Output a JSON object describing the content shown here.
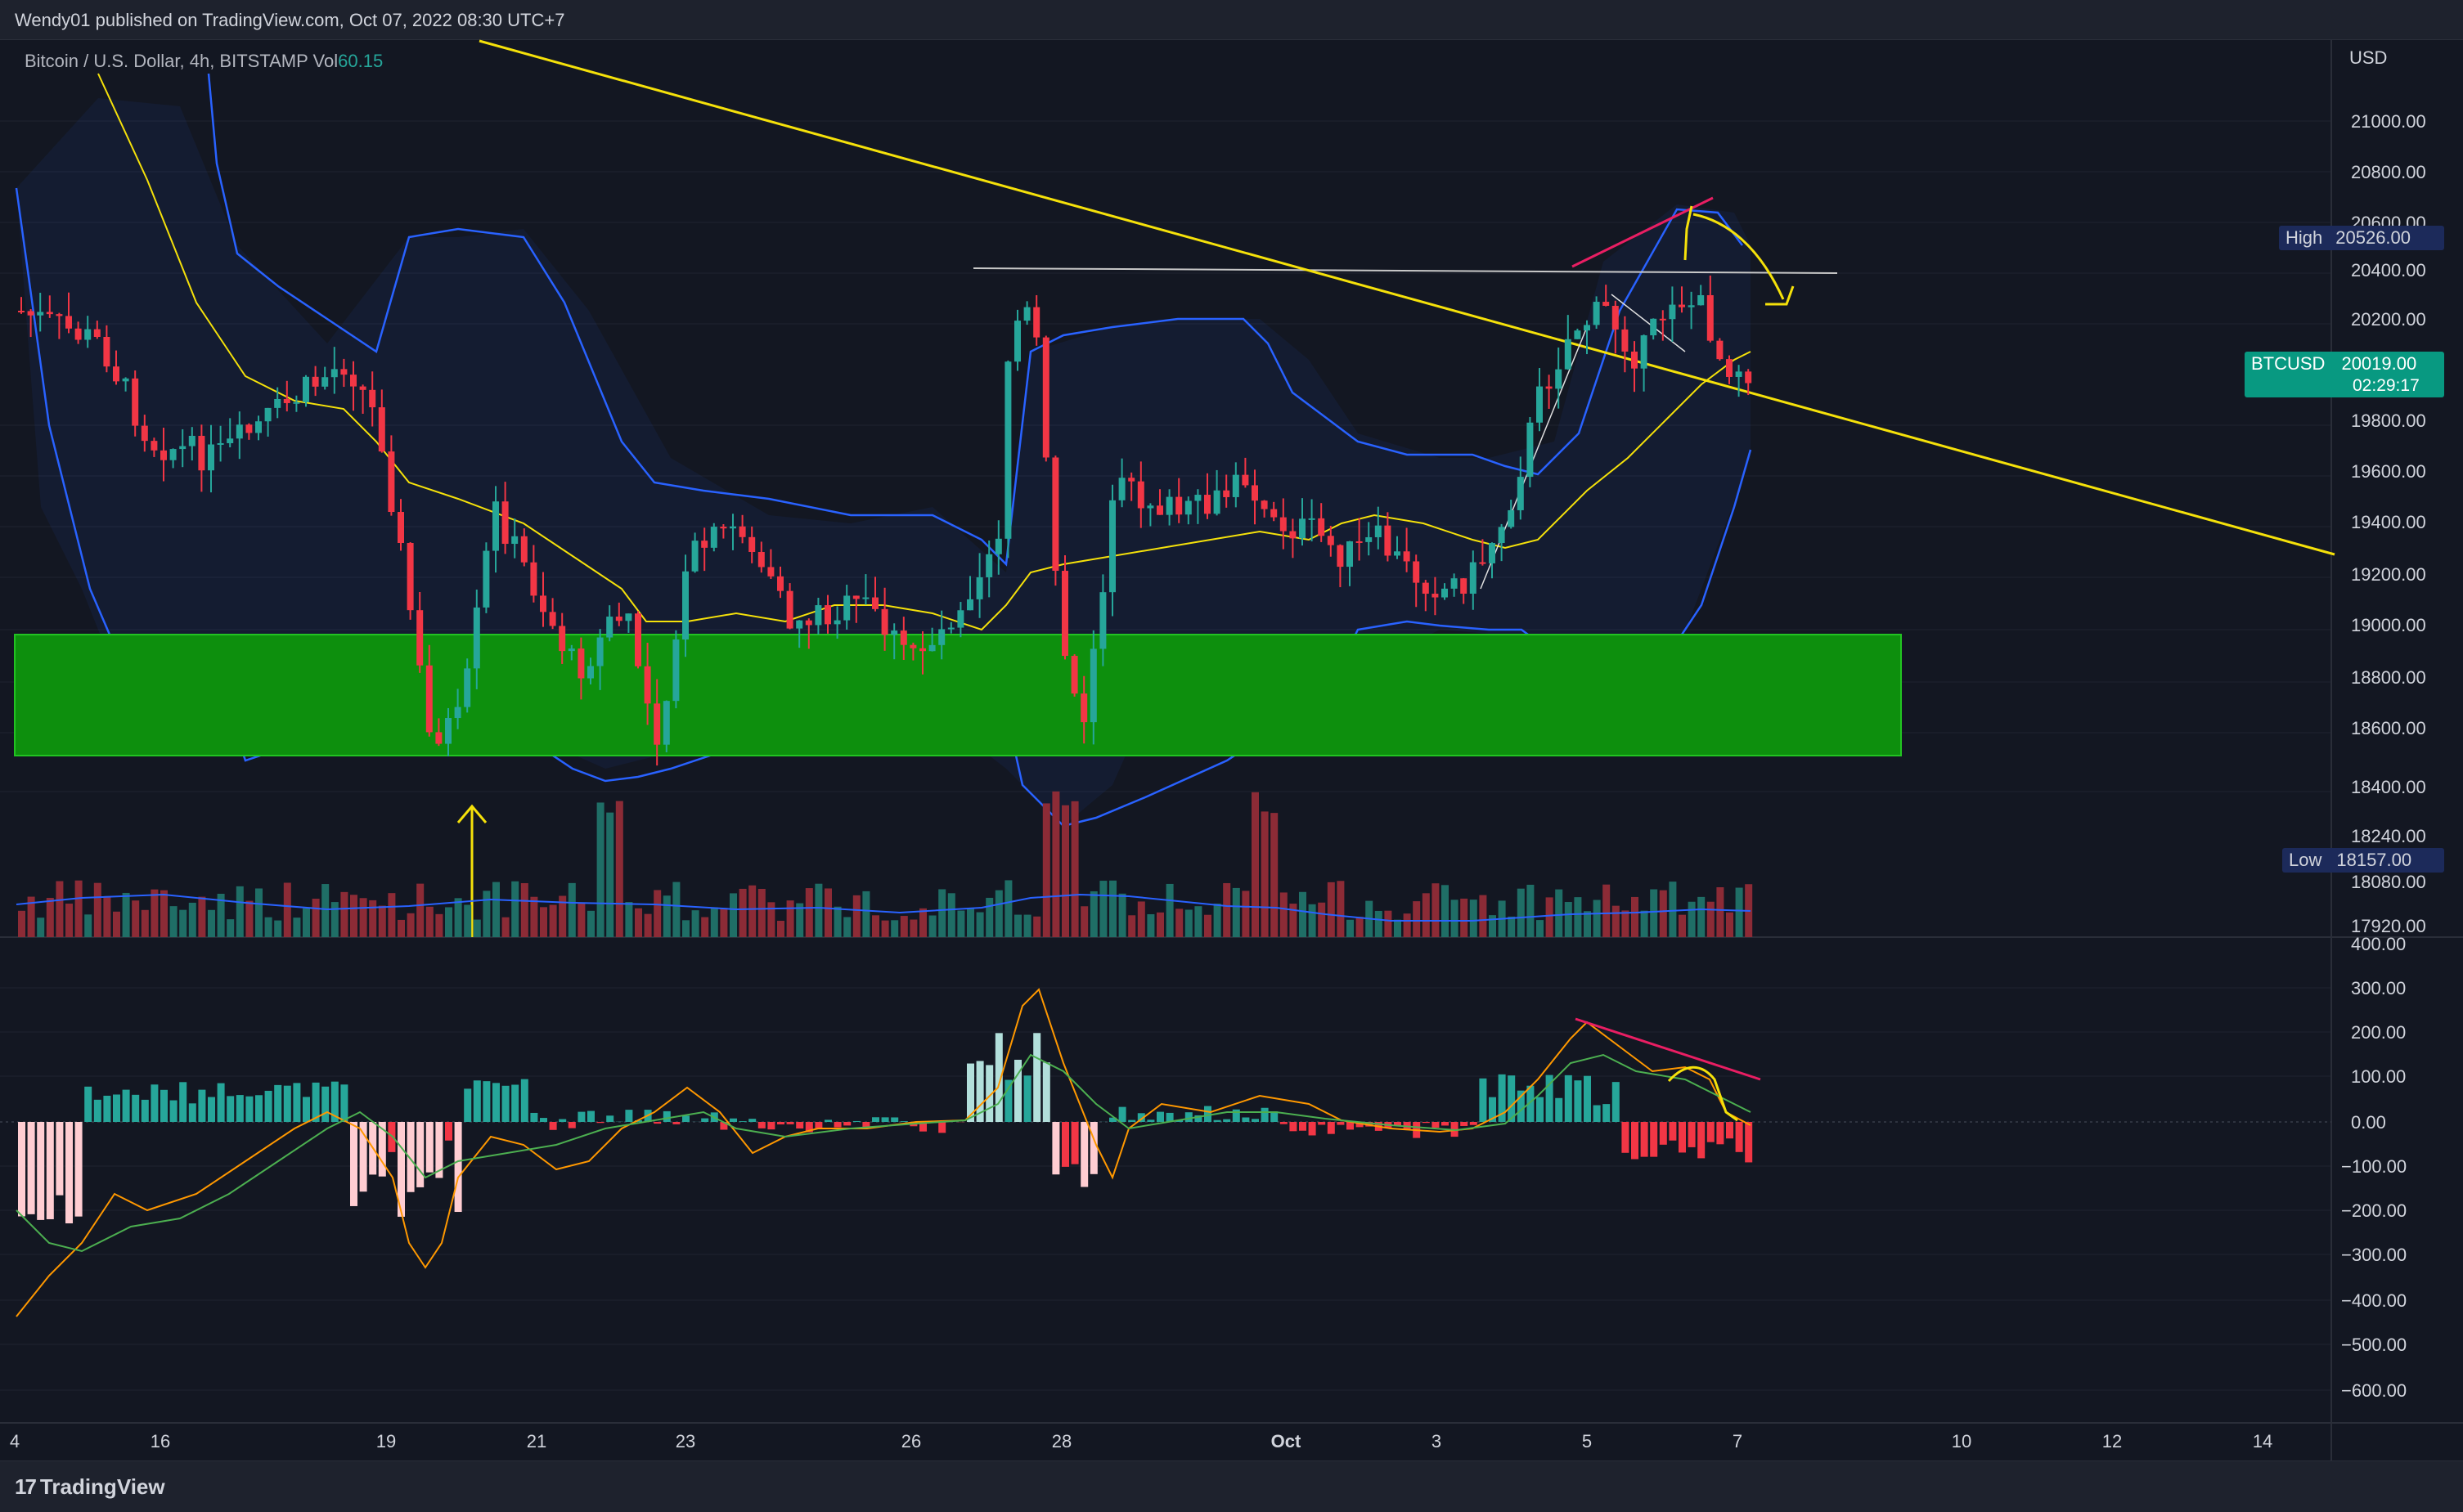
{
  "header": {
    "published": "Wendy01 published on TradingView.com, Oct 07, 2022 08:30 UTC+7"
  },
  "symbol": {
    "title": "Bitcoin / U.S. Dollar, 4h, BITSTAMP",
    "vol_label": "Vol",
    "vol_value": "60.15"
  },
  "price_axis": {
    "currency": "USD",
    "ticks": [
      "21000.00",
      "20800.00",
      "20600.00",
      "20400.00",
      "20200.00",
      "19800.00",
      "19600.00",
      "19400.00",
      "19200.00",
      "19000.00",
      "18800.00",
      "18600.00",
      "18400.00",
      "18240.00",
      "18080.00",
      "17920.00"
    ],
    "high_label": "High",
    "high_value": "20526.00",
    "low_label": "Low",
    "low_value": "18157.00",
    "btc_label": "BTCUSD",
    "btc_value": "20019.00",
    "btc_countdown": "02:29:17"
  },
  "macd_axis": {
    "ticks": [
      "400.00",
      "300.00",
      "200.00",
      "100.00",
      "0.00",
      "−100.00",
      "−200.00",
      "−300.00",
      "−400.00",
      "−500.00",
      "−600.00"
    ]
  },
  "time_axis": {
    "labels": [
      "4",
      "16",
      "19",
      "21",
      "23",
      "26",
      "28",
      "Oct",
      "3",
      "5",
      "7",
      "10",
      "12",
      "14"
    ]
  },
  "footer": {
    "brand": "TradingView"
  },
  "colors": {
    "background": "#131722",
    "up": "#26a69a",
    "down": "#f23645",
    "bollinger": "#2962ff",
    "trendline": "#f5e10a",
    "zone": "#0d8f0d"
  },
  "icons": {
    "up_arrow": "yellow-up-arrow-icon",
    "curve_arrow": "yellow-curved-arrow-icon"
  }
}
